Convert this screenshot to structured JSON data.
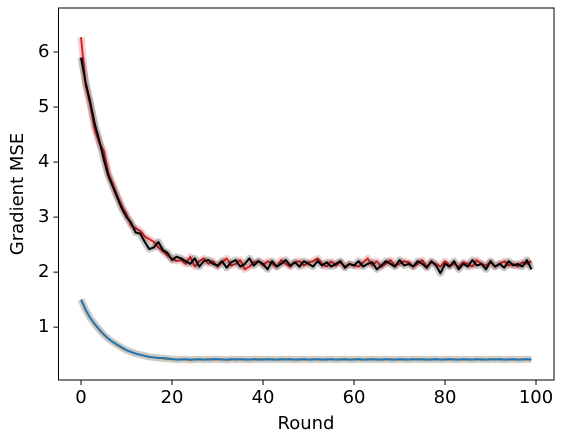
{
  "chart_data": {
    "type": "line",
    "xlabel": "Round",
    "ylabel": "Gradient MSE",
    "x": [
      0,
      1,
      2,
      3,
      4,
      5,
      6,
      7,
      8,
      9,
      10,
      11,
      12,
      13,
      14,
      15,
      16,
      17,
      18,
      19,
      20,
      21,
      22,
      23,
      24,
      25,
      26,
      27,
      28,
      29,
      30,
      31,
      32,
      33,
      34,
      35,
      36,
      37,
      38,
      39,
      40,
      41,
      42,
      43,
      44,
      45,
      46,
      47,
      48,
      49,
      50,
      51,
      52,
      53,
      54,
      55,
      56,
      57,
      58,
      59,
      60,
      61,
      62,
      63,
      64,
      65,
      66,
      67,
      68,
      69,
      70,
      71,
      72,
      73,
      74,
      75,
      76,
      77,
      78,
      79,
      80,
      81,
      82,
      83,
      84,
      85,
      86,
      87,
      88,
      89,
      90,
      91,
      92,
      93,
      94,
      95,
      96,
      97,
      98,
      99
    ],
    "series": [
      {
        "color": "#d62728",
        "values": [
          6.27,
          5.4,
          5.05,
          4.6,
          4.35,
          4.2,
          3.8,
          3.6,
          3.38,
          3.2,
          3.05,
          2.85,
          2.8,
          2.75,
          2.65,
          2.6,
          2.55,
          2.45,
          2.38,
          2.3,
          2.25,
          2.2,
          2.22,
          2.15,
          2.28,
          2.1,
          2.2,
          2.25,
          2.15,
          2.2,
          2.1,
          2.18,
          2.25,
          2.12,
          2.15,
          2.22,
          2.05,
          2.1,
          2.18,
          2.2,
          2.12,
          2.2,
          2.15,
          2.1,
          2.22,
          2.15,
          2.1,
          2.18,
          2.2,
          2.12,
          2.18,
          2.2,
          2.25,
          2.15,
          2.1,
          2.2,
          2.12,
          2.18,
          2.1,
          2.15,
          2.12,
          2.1,
          2.18,
          2.25,
          2.12,
          2.2,
          2.1,
          2.15,
          2.22,
          2.12,
          2.15,
          2.2,
          2.18,
          2.1,
          2.15,
          2.22,
          2.1,
          2.18,
          2.15,
          2.1,
          2.2,
          2.12,
          2.15,
          2.1,
          2.18,
          2.15,
          2.1,
          2.22,
          2.15,
          2.12,
          2.18,
          2.1,
          2.15,
          2.2,
          2.12,
          2.15,
          2.1,
          2.18,
          2.15,
          2.2
        ]
      },
      {
        "color": "#000000",
        "values": [
          5.9,
          5.45,
          5.1,
          4.7,
          4.4,
          4.05,
          3.75,
          3.55,
          3.35,
          3.15,
          3.0,
          2.9,
          2.72,
          2.7,
          2.55,
          2.42,
          2.45,
          2.55,
          2.4,
          2.35,
          2.22,
          2.28,
          2.25,
          2.2,
          2.15,
          2.25,
          2.1,
          2.2,
          2.22,
          2.15,
          2.12,
          2.2,
          2.08,
          2.18,
          2.22,
          2.1,
          2.15,
          2.25,
          2.12,
          2.2,
          2.15,
          2.05,
          2.2,
          2.1,
          2.15,
          2.22,
          2.12,
          2.18,
          2.1,
          2.2,
          2.15,
          2.1,
          2.2,
          2.12,
          2.18,
          2.1,
          2.15,
          2.2,
          2.08,
          2.15,
          2.12,
          2.2,
          2.1,
          2.15,
          2.18,
          2.05,
          2.12,
          2.2,
          2.15,
          2.1,
          2.22,
          2.12,
          2.15,
          2.1,
          2.2,
          2.15,
          2.08,
          2.2,
          2.12,
          1.98,
          2.15,
          2.1,
          2.2,
          2.05,
          2.15,
          2.1,
          2.22,
          2.12,
          2.15,
          2.05,
          2.2,
          2.1,
          2.15,
          2.08,
          2.2,
          2.12,
          2.15,
          2.1,
          2.22,
          2.05
        ]
      },
      {
        "color": "#ff7f0e",
        "values": [
          1.5,
          1.31,
          1.17,
          1.05,
          0.95,
          0.86,
          0.79,
          0.73,
          0.67,
          0.62,
          0.58,
          0.55,
          0.52,
          0.5,
          0.48,
          0.46,
          0.45,
          0.44,
          0.43,
          0.42,
          0.42,
          0.41,
          0.42,
          0.41,
          0.4,
          0.42,
          0.41,
          0.41,
          0.42,
          0.41,
          0.41,
          0.42,
          0.4,
          0.41,
          0.42,
          0.41,
          0.42,
          0.41,
          0.41,
          0.42,
          0.42,
          0.41,
          0.42,
          0.41,
          0.41,
          0.42,
          0.41,
          0.41,
          0.42,
          0.41,
          0.41,
          0.42,
          0.41,
          0.41,
          0.42,
          0.41,
          0.41,
          0.42,
          0.41,
          0.41,
          0.42,
          0.41,
          0.41,
          0.42,
          0.41,
          0.42,
          0.41,
          0.41,
          0.42,
          0.41,
          0.41,
          0.42,
          0.41,
          0.41,
          0.42,
          0.41,
          0.41,
          0.42,
          0.41,
          0.41,
          0.42,
          0.41,
          0.42,
          0.41,
          0.41,
          0.42,
          0.41,
          0.41,
          0.42,
          0.41,
          0.41,
          0.42,
          0.41,
          0.41,
          0.42,
          0.41,
          0.41,
          0.42,
          0.41,
          0.41
        ]
      },
      {
        "color": "#1f77b4",
        "values": [
          1.5,
          1.32,
          1.17,
          1.06,
          0.96,
          0.87,
          0.79,
          0.73,
          0.68,
          0.63,
          0.58,
          0.55,
          0.52,
          0.5,
          0.48,
          0.46,
          0.45,
          0.44,
          0.44,
          0.43,
          0.42,
          0.41,
          0.41,
          0.42,
          0.41,
          0.41,
          0.42,
          0.41,
          0.41,
          0.42,
          0.42,
          0.41,
          0.41,
          0.42,
          0.41,
          0.42,
          0.41,
          0.41,
          0.42,
          0.41,
          0.41,
          0.42,
          0.41,
          0.41,
          0.42,
          0.41,
          0.42,
          0.41,
          0.41,
          0.42,
          0.41,
          0.41,
          0.42,
          0.41,
          0.41,
          0.42,
          0.41,
          0.41,
          0.42,
          0.41,
          0.41,
          0.42,
          0.41,
          0.41,
          0.42,
          0.41,
          0.41,
          0.42,
          0.41,
          0.41,
          0.42,
          0.41,
          0.41,
          0.42,
          0.41,
          0.42,
          0.41,
          0.41,
          0.42,
          0.41,
          0.41,
          0.42,
          0.41,
          0.41,
          0.42,
          0.41,
          0.41,
          0.42,
          0.41,
          0.41,
          0.42,
          0.41,
          0.42,
          0.41,
          0.41,
          0.42,
          0.41,
          0.41,
          0.42,
          0.41
        ]
      }
    ],
    "xlim": [
      -4.95,
      103.95
    ],
    "xticks": [
      0,
      20,
      40,
      60,
      80,
      100
    ],
    "ylim": [
      0.04,
      6.8
    ],
    "yticks": [
      1,
      2,
      3,
      4,
      5,
      6
    ]
  }
}
